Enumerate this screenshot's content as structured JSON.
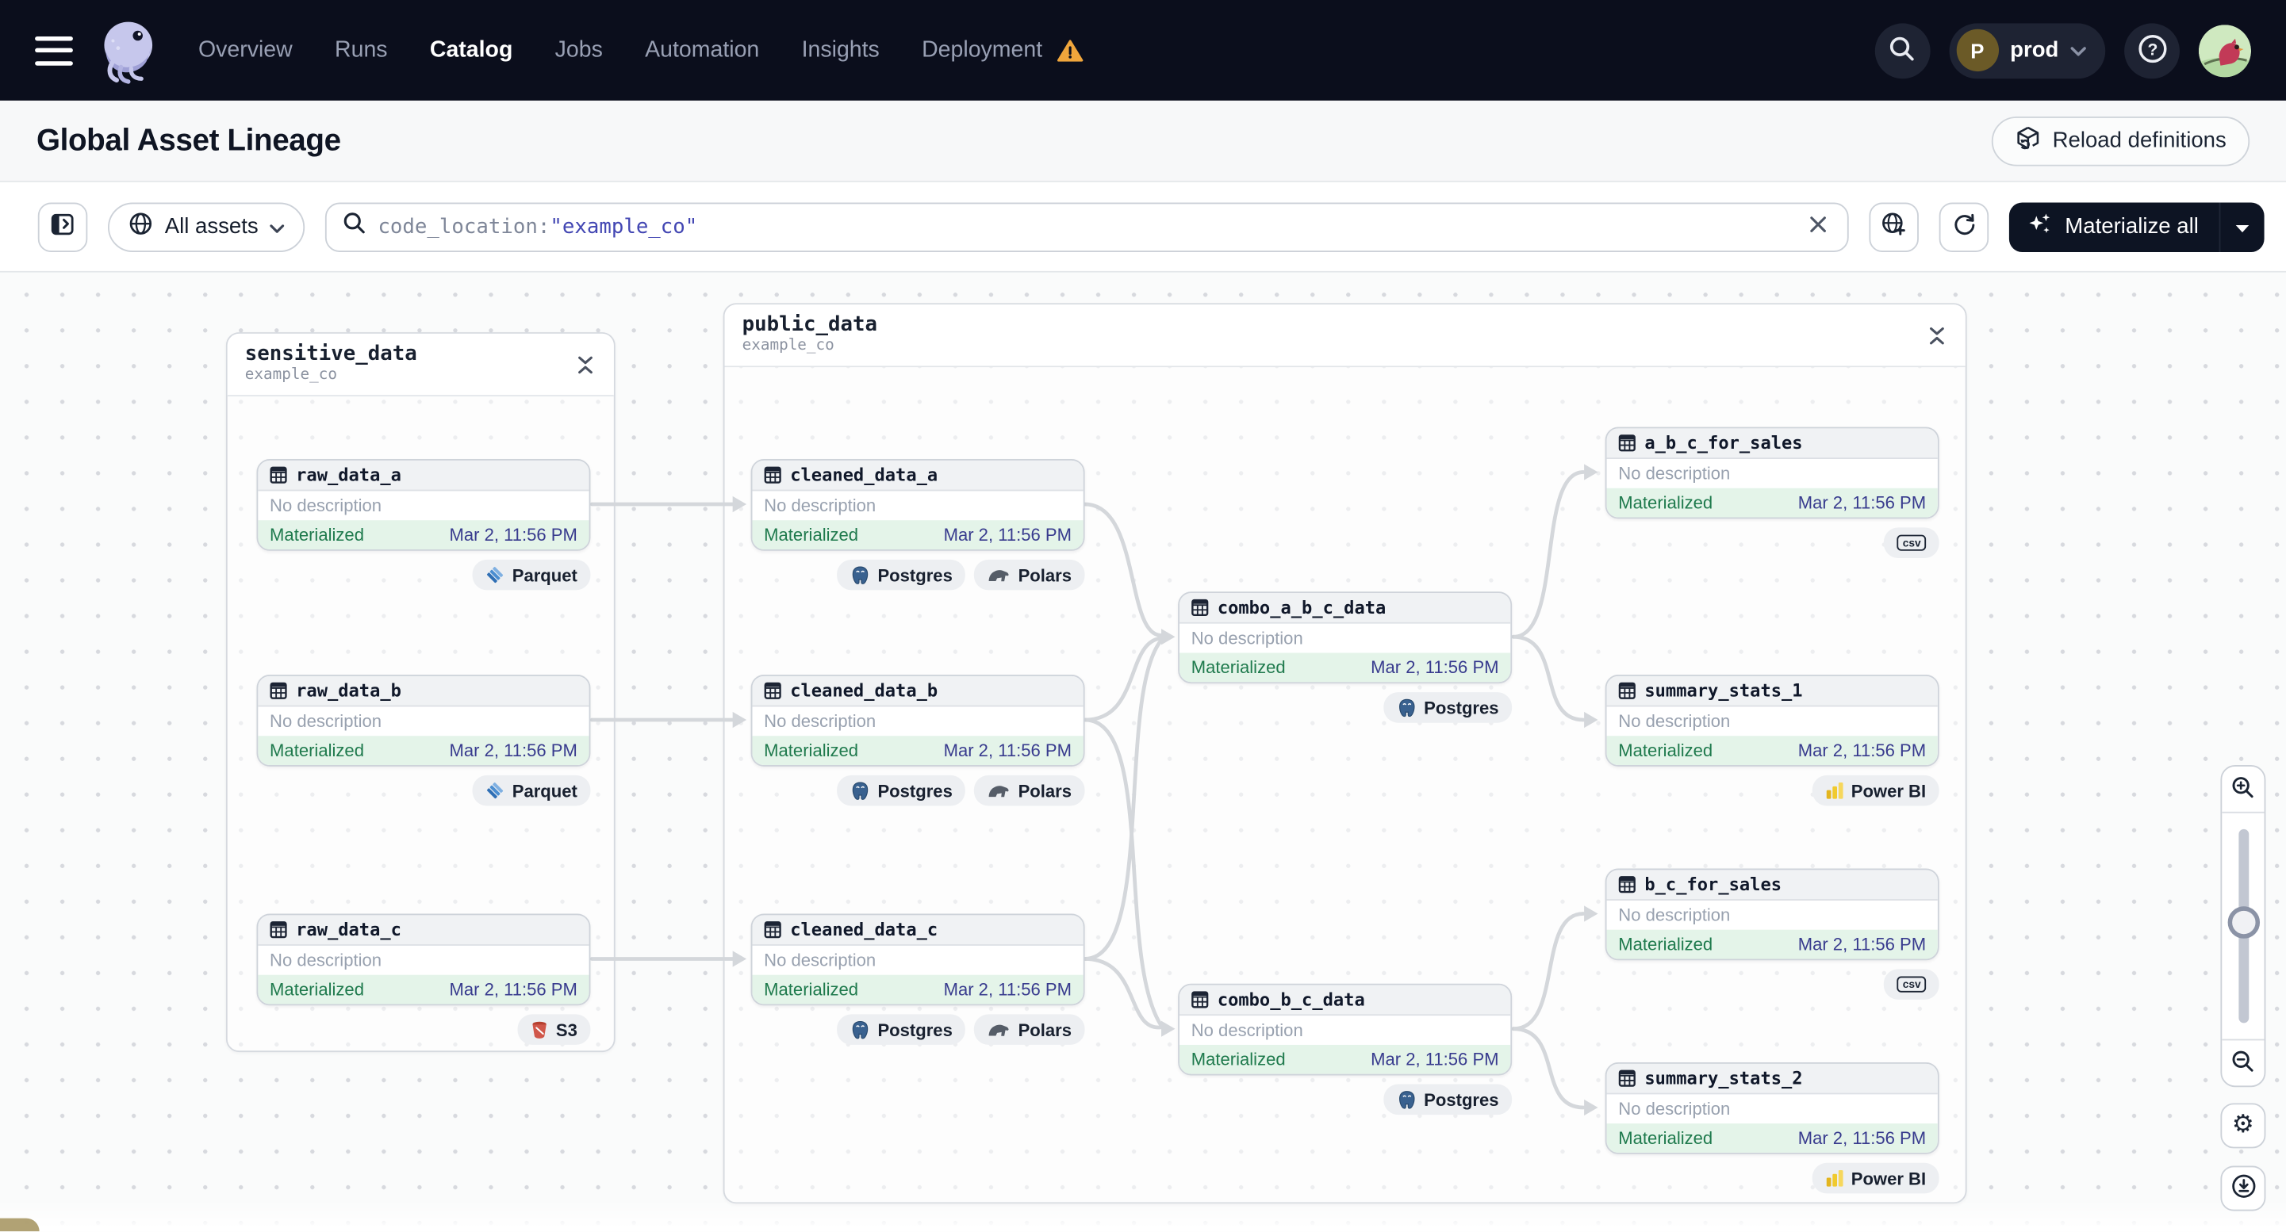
{
  "nav": {
    "items": [
      "Overview",
      "Runs",
      "Catalog",
      "Jobs",
      "Automation",
      "Insights",
      "Deployment"
    ],
    "active_item": "Catalog",
    "deployment_has_warning": true,
    "environment": {
      "initial": "P",
      "name": "prod"
    }
  },
  "header": {
    "title": "Global Asset Lineage",
    "reload_button": "Reload definitions"
  },
  "filterbar": {
    "scope_label": "All assets",
    "search_key": "code_location:",
    "search_term": "\"example_co\"",
    "materialize_button": "Materialize all"
  },
  "graph": {
    "groups": [
      {
        "id": "sensitive_data",
        "name": "sensitive_data",
        "code_location": "example_co"
      },
      {
        "id": "public_data",
        "name": "public_data",
        "code_location": "example_co"
      }
    ],
    "nodes": [
      {
        "id": "raw_data_a",
        "name": "raw_data_a",
        "group": "sensitive_data",
        "description": "No description",
        "status": "Materialized",
        "timestamp": "Mar 2, 11:56 PM",
        "tags": [
          "Parquet"
        ]
      },
      {
        "id": "raw_data_b",
        "name": "raw_data_b",
        "group": "sensitive_data",
        "description": "No description",
        "status": "Materialized",
        "timestamp": "Mar 2, 11:56 PM",
        "tags": [
          "Parquet"
        ]
      },
      {
        "id": "raw_data_c",
        "name": "raw_data_c",
        "group": "sensitive_data",
        "description": "No description",
        "status": "Materialized",
        "timestamp": "Mar 2, 11:56 PM",
        "tags": [
          "S3"
        ]
      },
      {
        "id": "cleaned_data_a",
        "name": "cleaned_data_a",
        "group": "public_data",
        "description": "No description",
        "status": "Materialized",
        "timestamp": "Mar 2, 11:56 PM",
        "tags": [
          "Postgres",
          "Polars"
        ]
      },
      {
        "id": "cleaned_data_b",
        "name": "cleaned_data_b",
        "group": "public_data",
        "description": "No description",
        "status": "Materialized",
        "timestamp": "Mar 2, 11:56 PM",
        "tags": [
          "Postgres",
          "Polars"
        ]
      },
      {
        "id": "cleaned_data_c",
        "name": "cleaned_data_c",
        "group": "public_data",
        "description": "No description",
        "status": "Materialized",
        "timestamp": "Mar 2, 11:56 PM",
        "tags": [
          "Postgres",
          "Polars"
        ]
      },
      {
        "id": "combo_a_b_c_data",
        "name": "combo_a_b_c_data",
        "group": "public_data",
        "description": "No description",
        "status": "Materialized",
        "timestamp": "Mar 2, 11:56 PM",
        "tags": [
          "Postgres"
        ]
      },
      {
        "id": "combo_b_c_data",
        "name": "combo_b_c_data",
        "group": "public_data",
        "description": "No description",
        "status": "Materialized",
        "timestamp": "Mar 2, 11:56 PM",
        "tags": [
          "Postgres"
        ]
      },
      {
        "id": "a_b_c_for_sales",
        "name": "a_b_c_for_sales",
        "group": "public_data",
        "description": "No description",
        "status": "Materialized",
        "timestamp": "Mar 2, 11:56 PM",
        "tags": [
          "csv"
        ]
      },
      {
        "id": "summary_stats_1",
        "name": "summary_stats_1",
        "group": "public_data",
        "description": "No description",
        "status": "Materialized",
        "timestamp": "Mar 2, 11:56 PM",
        "tags": [
          "Power BI"
        ]
      },
      {
        "id": "b_c_for_sales",
        "name": "b_c_for_sales",
        "group": "public_data",
        "description": "No description",
        "status": "Materialized",
        "timestamp": "Mar 2, 11:56 PM",
        "tags": [
          "csv"
        ]
      },
      {
        "id": "summary_stats_2",
        "name": "summary_stats_2",
        "group": "public_data",
        "description": "No description",
        "status": "Materialized",
        "timestamp": "Mar 2, 11:56 PM",
        "tags": [
          "Power BI"
        ]
      }
    ],
    "edges": [
      [
        "raw_data_a",
        "cleaned_data_a"
      ],
      [
        "raw_data_b",
        "cleaned_data_b"
      ],
      [
        "raw_data_c",
        "cleaned_data_c"
      ],
      [
        "cleaned_data_a",
        "combo_a_b_c_data"
      ],
      [
        "cleaned_data_b",
        "combo_a_b_c_data"
      ],
      [
        "cleaned_data_c",
        "combo_a_b_c_data"
      ],
      [
        "cleaned_data_b",
        "combo_b_c_data"
      ],
      [
        "cleaned_data_c",
        "combo_b_c_data"
      ],
      [
        "combo_a_b_c_data",
        "a_b_c_for_sales"
      ],
      [
        "combo_a_b_c_data",
        "summary_stats_1"
      ],
      [
        "combo_b_c_data",
        "b_c_for_sales"
      ],
      [
        "combo_b_c_data",
        "summary_stats_2"
      ]
    ]
  },
  "icons": {
    "gear-icon": "⚙",
    "help-icon": "?",
    "tag_icons": [
      "parquet-icon",
      "s3-icon",
      "postgres-icon",
      "polars-icon",
      "csv-icon",
      "powerbi-icon"
    ]
  },
  "colors": {
    "navbar_bg": "#0b0e1c",
    "accent_dark": "#0d1423",
    "status_green": "#1f7a4d",
    "status_bg": "#e4f4e9",
    "timestamp_indigo": "#383b8e",
    "search_term_indigo": "#4347b3",
    "warning_orange": "#f0a63c",
    "edge_gray": "#d4d7db"
  }
}
